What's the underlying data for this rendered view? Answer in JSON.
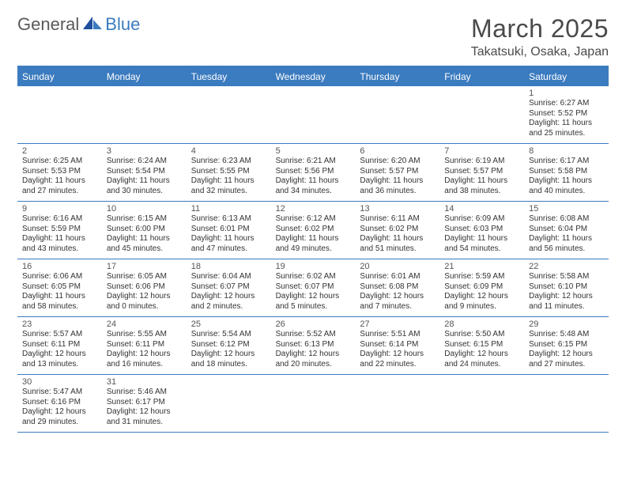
{
  "logo": {
    "text1": "General",
    "text2": "Blue"
  },
  "title": "March 2025",
  "location": "Takatsuki, Osaka, Japan",
  "colors": {
    "accent": "#3b7bbf",
    "text": "#333333",
    "headerText": "#ffffff"
  },
  "dayNames": [
    "Sunday",
    "Monday",
    "Tuesday",
    "Wednesday",
    "Thursday",
    "Friday",
    "Saturday"
  ],
  "weeks": [
    [
      null,
      null,
      null,
      null,
      null,
      null,
      {
        "n": "1",
        "sr": "6:27 AM",
        "ss": "5:52 PM",
        "dh": "11",
        "dm": "25"
      }
    ],
    [
      {
        "n": "2",
        "sr": "6:25 AM",
        "ss": "5:53 PM",
        "dh": "11",
        "dm": "27"
      },
      {
        "n": "3",
        "sr": "6:24 AM",
        "ss": "5:54 PM",
        "dh": "11",
        "dm": "30"
      },
      {
        "n": "4",
        "sr": "6:23 AM",
        "ss": "5:55 PM",
        "dh": "11",
        "dm": "32"
      },
      {
        "n": "5",
        "sr": "6:21 AM",
        "ss": "5:56 PM",
        "dh": "11",
        "dm": "34"
      },
      {
        "n": "6",
        "sr": "6:20 AM",
        "ss": "5:57 PM",
        "dh": "11",
        "dm": "36"
      },
      {
        "n": "7",
        "sr": "6:19 AM",
        "ss": "5:57 PM",
        "dh": "11",
        "dm": "38"
      },
      {
        "n": "8",
        "sr": "6:17 AM",
        "ss": "5:58 PM",
        "dh": "11",
        "dm": "40"
      }
    ],
    [
      {
        "n": "9",
        "sr": "6:16 AM",
        "ss": "5:59 PM",
        "dh": "11",
        "dm": "43"
      },
      {
        "n": "10",
        "sr": "6:15 AM",
        "ss": "6:00 PM",
        "dh": "11",
        "dm": "45"
      },
      {
        "n": "11",
        "sr": "6:13 AM",
        "ss": "6:01 PM",
        "dh": "11",
        "dm": "47"
      },
      {
        "n": "12",
        "sr": "6:12 AM",
        "ss": "6:02 PM",
        "dh": "11",
        "dm": "49"
      },
      {
        "n": "13",
        "sr": "6:11 AM",
        "ss": "6:02 PM",
        "dh": "11",
        "dm": "51"
      },
      {
        "n": "14",
        "sr": "6:09 AM",
        "ss": "6:03 PM",
        "dh": "11",
        "dm": "54"
      },
      {
        "n": "15",
        "sr": "6:08 AM",
        "ss": "6:04 PM",
        "dh": "11",
        "dm": "56"
      }
    ],
    [
      {
        "n": "16",
        "sr": "6:06 AM",
        "ss": "6:05 PM",
        "dh": "11",
        "dm": "58"
      },
      {
        "n": "17",
        "sr": "6:05 AM",
        "ss": "6:06 PM",
        "dh": "12",
        "dm": "0"
      },
      {
        "n": "18",
        "sr": "6:04 AM",
        "ss": "6:07 PM",
        "dh": "12",
        "dm": "2"
      },
      {
        "n": "19",
        "sr": "6:02 AM",
        "ss": "6:07 PM",
        "dh": "12",
        "dm": "5"
      },
      {
        "n": "20",
        "sr": "6:01 AM",
        "ss": "6:08 PM",
        "dh": "12",
        "dm": "7"
      },
      {
        "n": "21",
        "sr": "5:59 AM",
        "ss": "6:09 PM",
        "dh": "12",
        "dm": "9"
      },
      {
        "n": "22",
        "sr": "5:58 AM",
        "ss": "6:10 PM",
        "dh": "12",
        "dm": "11"
      }
    ],
    [
      {
        "n": "23",
        "sr": "5:57 AM",
        "ss": "6:11 PM",
        "dh": "12",
        "dm": "13"
      },
      {
        "n": "24",
        "sr": "5:55 AM",
        "ss": "6:11 PM",
        "dh": "12",
        "dm": "16"
      },
      {
        "n": "25",
        "sr": "5:54 AM",
        "ss": "6:12 PM",
        "dh": "12",
        "dm": "18"
      },
      {
        "n": "26",
        "sr": "5:52 AM",
        "ss": "6:13 PM",
        "dh": "12",
        "dm": "20"
      },
      {
        "n": "27",
        "sr": "5:51 AM",
        "ss": "6:14 PM",
        "dh": "12",
        "dm": "22"
      },
      {
        "n": "28",
        "sr": "5:50 AM",
        "ss": "6:15 PM",
        "dh": "12",
        "dm": "24"
      },
      {
        "n": "29",
        "sr": "5:48 AM",
        "ss": "6:15 PM",
        "dh": "12",
        "dm": "27"
      }
    ],
    [
      {
        "n": "30",
        "sr": "5:47 AM",
        "ss": "6:16 PM",
        "dh": "12",
        "dm": "29"
      },
      {
        "n": "31",
        "sr": "5:46 AM",
        "ss": "6:17 PM",
        "dh": "12",
        "dm": "31"
      },
      null,
      null,
      null,
      null,
      null
    ]
  ]
}
